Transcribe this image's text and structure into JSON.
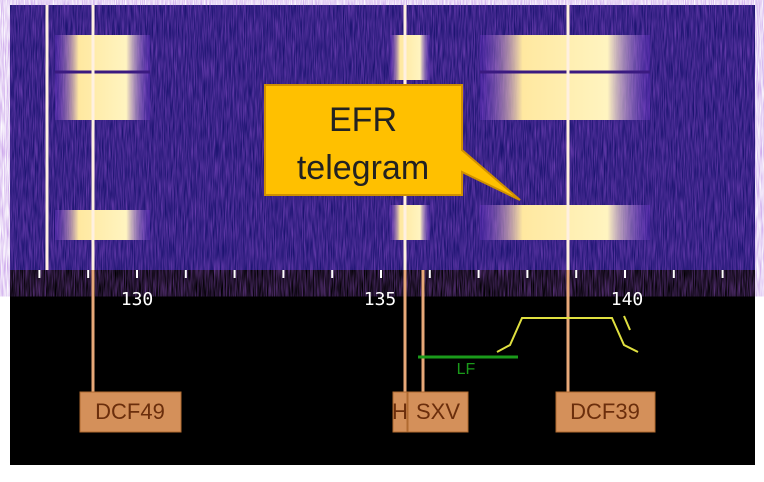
{
  "scale": {
    "labels": [
      "130",
      "135",
      "140"
    ]
  },
  "stations": [
    "DCF49",
    "H",
    "SXV",
    "DCF39"
  ],
  "filter": {
    "label": "LF"
  },
  "callout": {
    "lines": [
      "EFR",
      "telegram"
    ]
  }
}
